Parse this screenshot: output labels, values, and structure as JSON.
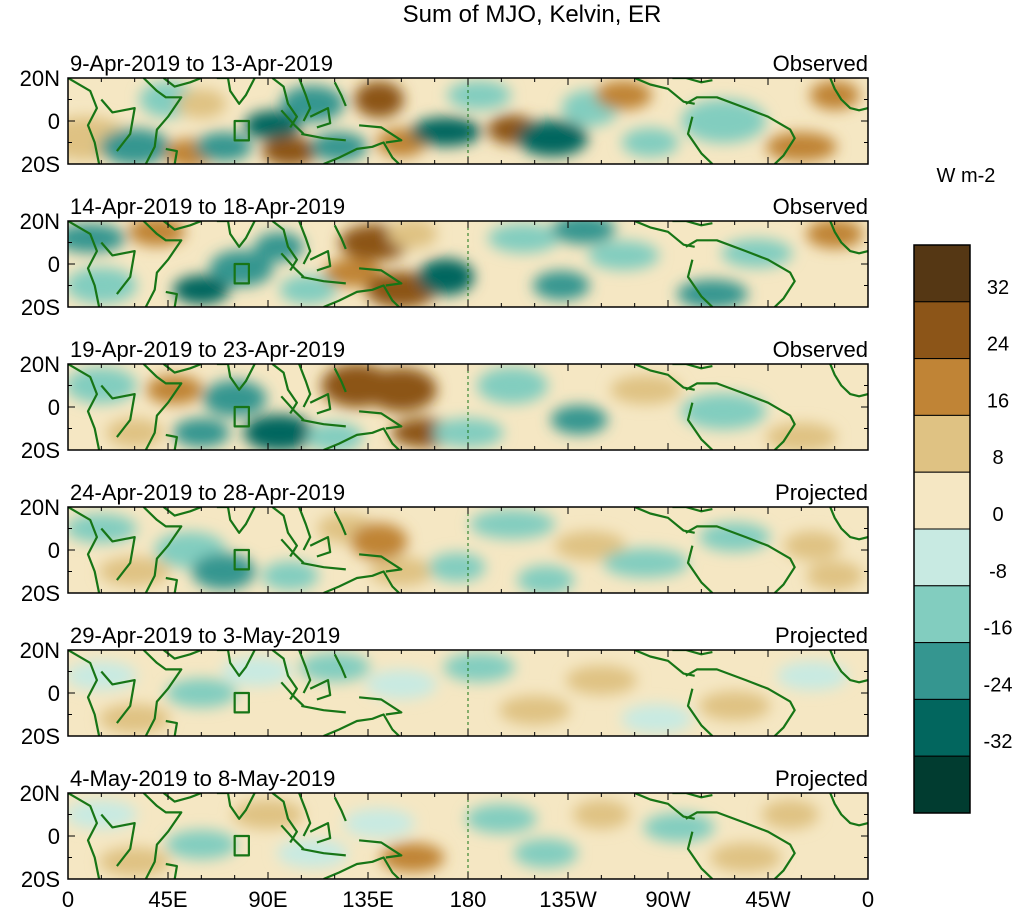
{
  "chart_data": {
    "type": "heatmap",
    "title": "Sum of MJO, Kelvin, ER",
    "units": "W m-2",
    "x_ticks": [
      "0",
      "45E",
      "90E",
      "135E",
      "180",
      "135W",
      "90W",
      "45W",
      "0"
    ],
    "x_tick_lon": [
      0,
      45,
      90,
      135,
      180,
      225,
      270,
      315,
      360
    ],
    "xlim": [
      0,
      360
    ],
    "y_ticks": [
      "20N",
      "0",
      "20S"
    ],
    "y_tick_lat": [
      20,
      0,
      -20
    ],
    "ylim": [
      -20,
      20
    ],
    "colorbar": {
      "tick_labels": [
        "32",
        "24",
        "16",
        "8",
        "0",
        "-8",
        "-16",
        "-24",
        "-32"
      ],
      "levels": [
        32,
        24,
        16,
        8,
        0,
        -8,
        -16,
        -24,
        -32
      ],
      "colors": [
        "#553714",
        "#8c5518",
        "#c08436",
        "#dfc283",
        "#f5e7c3",
        "#c8eae2",
        "#82cdbf",
        "#359690",
        "#02665e",
        "#013c30"
      ]
    },
    "panels": [
      {
        "period": "9-Apr-2019 to 13-Apr-2019",
        "status": "Observed",
        "anomalies": [
          {
            "lon": 8,
            "lat": -8,
            "sw": 12,
            "sh": 6,
            "value": 14
          },
          {
            "lon": 30,
            "lat": -12,
            "sw": 10,
            "sh": 5,
            "value": -22
          },
          {
            "lon": 45,
            "lat": 10,
            "sw": 8,
            "sh": 5,
            "value": -10
          },
          {
            "lon": 55,
            "lat": -15,
            "sw": 7,
            "sh": 4,
            "value": 16
          },
          {
            "lon": 70,
            "lat": -12,
            "sw": 8,
            "sh": 4,
            "value": -20
          },
          {
            "lon": 60,
            "lat": 8,
            "sw": 7,
            "sh": 4,
            "value": 12
          },
          {
            "lon": 92,
            "lat": -2,
            "sw": 8,
            "sh": 4,
            "value": -26
          },
          {
            "lon": 110,
            "lat": 8,
            "sw": 9,
            "sh": 5,
            "value": -18
          },
          {
            "lon": 100,
            "lat": -14,
            "sw": 8,
            "sh": 4,
            "value": 24
          },
          {
            "lon": 122,
            "lat": -12,
            "sw": 8,
            "sh": 4,
            "value": -20
          },
          {
            "lon": 140,
            "lat": 10,
            "sw": 7,
            "sh": 5,
            "value": 26
          },
          {
            "lon": 150,
            "lat": -10,
            "sw": 7,
            "sh": 4,
            "value": 18
          },
          {
            "lon": 170,
            "lat": -5,
            "sw": 10,
            "sh": 4,
            "value": -28
          },
          {
            "lon": 185,
            "lat": 12,
            "sw": 9,
            "sh": 4,
            "value": -14
          },
          {
            "lon": 200,
            "lat": -4,
            "sw": 7,
            "sh": 4,
            "value": 24
          },
          {
            "lon": 218,
            "lat": -8,
            "sw": 10,
            "sh": 5,
            "value": -30
          },
          {
            "lon": 235,
            "lat": 6,
            "sw": 8,
            "sh": 5,
            "value": -14
          },
          {
            "lon": 250,
            "lat": 12,
            "sw": 8,
            "sh": 4,
            "value": 16
          },
          {
            "lon": 262,
            "lat": -10,
            "sw": 8,
            "sh": 4,
            "value": -10
          },
          {
            "lon": 295,
            "lat": 0,
            "sw": 12,
            "sh": 6,
            "value": -10
          },
          {
            "lon": 330,
            "lat": -12,
            "sw": 10,
            "sh": 4,
            "value": 16
          },
          {
            "lon": 345,
            "lat": 12,
            "sw": 7,
            "sh": 4,
            "value": 18
          }
        ]
      },
      {
        "period": "14-Apr-2019 to 18-Apr-2019",
        "status": "Observed",
        "anomalies": [
          {
            "lon": 10,
            "lat": 12,
            "sw": 10,
            "sh": 4,
            "value": -18
          },
          {
            "lon": 15,
            "lat": -10,
            "sw": 10,
            "sh": 5,
            "value": -12
          },
          {
            "lon": 40,
            "lat": 15,
            "sw": 8,
            "sh": 4,
            "value": 16
          },
          {
            "lon": 60,
            "lat": -12,
            "sw": 8,
            "sh": 4,
            "value": -26
          },
          {
            "lon": 78,
            "lat": -2,
            "sw": 9,
            "sh": 5,
            "value": -24
          },
          {
            "lon": 95,
            "lat": 8,
            "sw": 7,
            "sh": 4,
            "value": -18
          },
          {
            "lon": 108,
            "lat": -12,
            "sw": 8,
            "sh": 4,
            "value": -14
          },
          {
            "lon": 138,
            "lat": 10,
            "sw": 10,
            "sh": 5,
            "value": 26
          },
          {
            "lon": 128,
            "lat": -4,
            "sw": 8,
            "sh": 4,
            "value": 18
          },
          {
            "lon": 150,
            "lat": -12,
            "sw": 10,
            "sh": 5,
            "value": 30
          },
          {
            "lon": 170,
            "lat": -6,
            "sw": 8,
            "sh": 5,
            "value": -28
          },
          {
            "lon": 155,
            "lat": 14,
            "sw": 7,
            "sh": 4,
            "value": 14
          },
          {
            "lon": 205,
            "lat": 12,
            "sw": 10,
            "sh": 4,
            "value": -10
          },
          {
            "lon": 222,
            "lat": -10,
            "sw": 8,
            "sh": 4,
            "value": -22
          },
          {
            "lon": 232,
            "lat": 16,
            "sw": 9,
            "sh": 4,
            "value": -22
          },
          {
            "lon": 250,
            "lat": 4,
            "sw": 10,
            "sh": 4,
            "value": -12
          },
          {
            "lon": 290,
            "lat": -14,
            "sw": 10,
            "sh": 4,
            "value": -20
          },
          {
            "lon": 310,
            "lat": 5,
            "sw": 10,
            "sh": 4,
            "value": -14
          },
          {
            "lon": 345,
            "lat": 14,
            "sw": 8,
            "sh": 4,
            "value": 22
          }
        ]
      },
      {
        "period": "19-Apr-2019 to 23-Apr-2019",
        "status": "Observed",
        "anomalies": [
          {
            "lon": 15,
            "lat": 10,
            "sw": 10,
            "sh": 5,
            "value": -14
          },
          {
            "lon": 30,
            "lat": -12,
            "sw": 8,
            "sh": 4,
            "value": 10
          },
          {
            "lon": 48,
            "lat": 8,
            "sw": 8,
            "sh": 4,
            "value": 18
          },
          {
            "lon": 60,
            "lat": -12,
            "sw": 8,
            "sh": 4,
            "value": -24
          },
          {
            "lon": 75,
            "lat": 4,
            "sw": 9,
            "sh": 5,
            "value": -22
          },
          {
            "lon": 95,
            "lat": -12,
            "sw": 10,
            "sh": 5,
            "value": -30
          },
          {
            "lon": 120,
            "lat": -14,
            "sw": 8,
            "sh": 4,
            "value": -14
          },
          {
            "lon": 130,
            "lat": 10,
            "sw": 10,
            "sh": 6,
            "value": 26
          },
          {
            "lon": 150,
            "lat": 8,
            "sw": 10,
            "sh": 6,
            "value": 30
          },
          {
            "lon": 160,
            "lat": -12,
            "sw": 9,
            "sh": 4,
            "value": 24
          },
          {
            "lon": 180,
            "lat": -12,
            "sw": 10,
            "sh": 4,
            "value": -16
          },
          {
            "lon": 200,
            "lat": 10,
            "sw": 10,
            "sh": 5,
            "value": -12
          },
          {
            "lon": 230,
            "lat": -6,
            "sw": 8,
            "sh": 4,
            "value": -24
          },
          {
            "lon": 260,
            "lat": 8,
            "sw": 10,
            "sh": 4,
            "value": 14
          },
          {
            "lon": 295,
            "lat": -2,
            "sw": 12,
            "sh": 5,
            "value": -12
          },
          {
            "lon": 330,
            "lat": -14,
            "sw": 10,
            "sh": 4,
            "value": 14
          }
        ]
      },
      {
        "period": "24-Apr-2019 to 28-Apr-2019",
        "status": "Projected",
        "anomalies": [
          {
            "lon": 15,
            "lat": 10,
            "sw": 10,
            "sh": 4,
            "value": -10
          },
          {
            "lon": 30,
            "lat": -10,
            "sw": 10,
            "sh": 4,
            "value": 8
          },
          {
            "lon": 55,
            "lat": 0,
            "sw": 10,
            "sh": 5,
            "value": -16
          },
          {
            "lon": 70,
            "lat": -10,
            "sw": 9,
            "sh": 5,
            "value": -20
          },
          {
            "lon": 100,
            "lat": -12,
            "sw": 8,
            "sh": 4,
            "value": -14
          },
          {
            "lon": 125,
            "lat": 10,
            "sw": 8,
            "sh": 4,
            "value": 14
          },
          {
            "lon": 140,
            "lat": 4,
            "sw": 8,
            "sh": 5,
            "value": 18
          },
          {
            "lon": 150,
            "lat": -10,
            "sw": 9,
            "sh": 4,
            "value": 10
          },
          {
            "lon": 175,
            "lat": -8,
            "sw": 8,
            "sh": 4,
            "value": -10
          },
          {
            "lon": 200,
            "lat": 12,
            "sw": 12,
            "sh": 4,
            "value": -14
          },
          {
            "lon": 215,
            "lat": -14,
            "sw": 8,
            "sh": 4,
            "value": -16
          },
          {
            "lon": 235,
            "lat": 2,
            "sw": 10,
            "sh": 4,
            "value": 8
          },
          {
            "lon": 260,
            "lat": -6,
            "sw": 12,
            "sh": 4,
            "value": -10
          },
          {
            "lon": 300,
            "lat": 6,
            "sw": 10,
            "sh": 4,
            "value": -12
          },
          {
            "lon": 335,
            "lat": 2,
            "sw": 8,
            "sh": 4,
            "value": 14
          },
          {
            "lon": 345,
            "lat": -12,
            "sw": 8,
            "sh": 4,
            "value": 8
          }
        ]
      },
      {
        "period": "29-Apr-2019 to 3-May-2019",
        "status": "Projected",
        "anomalies": [
          {
            "lon": 15,
            "lat": 8,
            "sw": 10,
            "sh": 4,
            "value": -8
          },
          {
            "lon": 30,
            "lat": -12,
            "sw": 10,
            "sh": 4,
            "value": 10
          },
          {
            "lon": 60,
            "lat": 0,
            "sw": 10,
            "sh": 4,
            "value": -10
          },
          {
            "lon": 85,
            "lat": 10,
            "sw": 10,
            "sh": 4,
            "value": -8
          },
          {
            "lon": 120,
            "lat": 12,
            "sw": 10,
            "sh": 4,
            "value": -10
          },
          {
            "lon": 150,
            "lat": 4,
            "sw": 10,
            "sh": 4,
            "value": -8
          },
          {
            "lon": 185,
            "lat": 12,
            "sw": 10,
            "sh": 4,
            "value": -14
          },
          {
            "lon": 210,
            "lat": -8,
            "sw": 10,
            "sh": 4,
            "value": 8
          },
          {
            "lon": 240,
            "lat": 6,
            "sw": 10,
            "sh": 4,
            "value": 10
          },
          {
            "lon": 265,
            "lat": -12,
            "sw": 10,
            "sh": 4,
            "value": -8
          },
          {
            "lon": 300,
            "lat": -6,
            "sw": 10,
            "sh": 4,
            "value": 10
          },
          {
            "lon": 335,
            "lat": 8,
            "sw": 10,
            "sh": 4,
            "value": -8
          }
        ]
      },
      {
        "period": "4-May-2019 to 8-May-2019",
        "status": "Projected",
        "anomalies": [
          {
            "lon": 15,
            "lat": 10,
            "sw": 10,
            "sh": 4,
            "value": -8
          },
          {
            "lon": 30,
            "lat": -12,
            "sw": 10,
            "sh": 4,
            "value": 10
          },
          {
            "lon": 60,
            "lat": -4,
            "sw": 10,
            "sh": 4,
            "value": -10
          },
          {
            "lon": 90,
            "lat": 10,
            "sw": 10,
            "sh": 4,
            "value": 8
          },
          {
            "lon": 110,
            "lat": -8,
            "sw": 10,
            "sh": 4,
            "value": -8
          },
          {
            "lon": 155,
            "lat": -10,
            "sw": 9,
            "sh": 4,
            "value": 22
          },
          {
            "lon": 140,
            "lat": 6,
            "sw": 10,
            "sh": 4,
            "value": -8
          },
          {
            "lon": 195,
            "lat": 8,
            "sw": 10,
            "sh": 4,
            "value": -12
          },
          {
            "lon": 215,
            "lat": -8,
            "sw": 9,
            "sh": 4,
            "value": -10
          },
          {
            "lon": 240,
            "lat": 10,
            "sw": 8,
            "sh": 4,
            "value": 12
          },
          {
            "lon": 275,
            "lat": 4,
            "sw": 10,
            "sh": 4,
            "value": -10
          },
          {
            "lon": 305,
            "lat": -10,
            "sw": 10,
            "sh": 4,
            "value": 8
          },
          {
            "lon": 325,
            "lat": 10,
            "sw": 8,
            "sh": 4,
            "value": 10
          }
        ]
      }
    ]
  }
}
